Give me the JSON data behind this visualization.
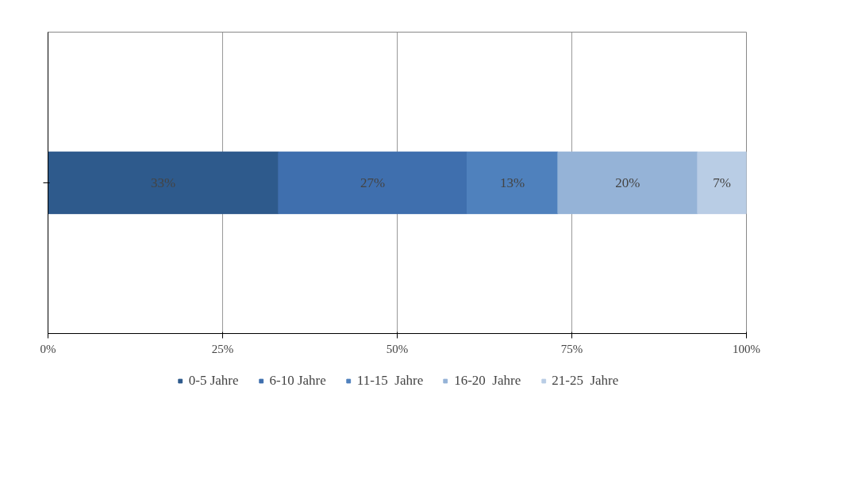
{
  "chart_data": {
    "type": "bar",
    "orientation": "horizontal",
    "stacked": true,
    "categories": [
      null
    ],
    "series": [
      {
        "name": "0-5 Jahre",
        "color": "#2e5a8c",
        "values": [
          33
        ],
        "value_labels": [
          "33%"
        ]
      },
      {
        "name": "6-10 Jahre",
        "color": "#3f6fae",
        "values": [
          27
        ],
        "value_labels": [
          "27%"
        ]
      },
      {
        "name": "11-15  Jahre",
        "color": "#4f81bd",
        "values": [
          13
        ],
        "value_labels": [
          "13%"
        ]
      },
      {
        "name": "16-20  Jahre",
        "color": "#95b3d7",
        "values": [
          20
        ],
        "value_labels": [
          "20%"
        ]
      },
      {
        "name": "21-25  Jahre",
        "color": "#b9cde5",
        "values": [
          7
        ],
        "value_labels": [
          "7%"
        ]
      }
    ],
    "xlim": [
      0,
      100
    ],
    "xticks": [
      {
        "value": 0,
        "label": "0%"
      },
      {
        "value": 25,
        "label": "25%"
      },
      {
        "value": 50,
        "label": "50%"
      },
      {
        "value": 75,
        "label": "75%"
      },
      {
        "value": 100,
        "label": "100%"
      }
    ],
    "grid": "x",
    "legend": "bottom"
  }
}
